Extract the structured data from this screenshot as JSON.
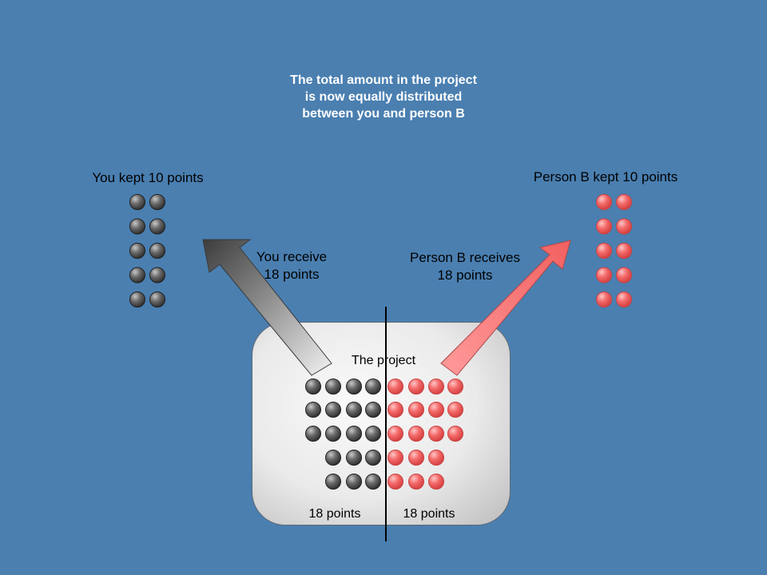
{
  "title": "The total amount in the project is now equally distributed between you and person B",
  "you": {
    "kept_label": "You kept 10 points",
    "receive_label_line1": "You receive",
    "receive_label_line2": "18 points",
    "kept_points": 10,
    "color": "#555555"
  },
  "person_b": {
    "kept_label": "Person B kept 10 points",
    "receive_label_line1": "Person B receives",
    "receive_label_line2": "18 points",
    "kept_points": 10,
    "color": "#f25c5c"
  },
  "project": {
    "label": "The project",
    "left_total": "18 points",
    "right_total": "18 points",
    "left_points": 18,
    "right_points": 18
  }
}
